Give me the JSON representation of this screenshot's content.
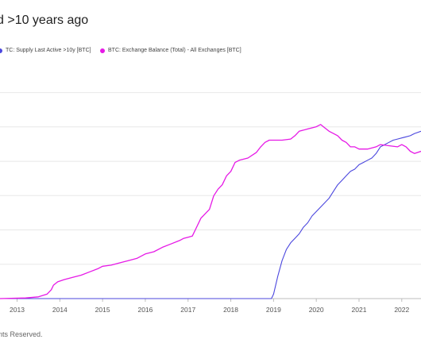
{
  "header": {
    "title": "d >10 years ago"
  },
  "footer": {
    "text": "nts Reserved."
  },
  "colors": {
    "series_supply": "#4b47de",
    "series_exchange": "#e619e6",
    "grid": "#e8e8e8",
    "axis": "#bdbdbd"
  },
  "chart_data": {
    "type": "line",
    "title": "d >10 years ago",
    "xlabel": "",
    "ylabel": "",
    "x_ticks": [
      "2013",
      "2014",
      "2015",
      "2016",
      "2017",
      "2018",
      "2019",
      "2020",
      "2021",
      "2022"
    ],
    "xlim": [
      2012.6,
      2022.45
    ],
    "ylim": [
      0,
      100
    ],
    "grid": true,
    "legend_position": "top",
    "series": [
      {
        "name": "TC: Supply Last Active >10y [BTC]",
        "color": "#4b47de",
        "points": [
          [
            2012.6,
            0
          ],
          [
            2018.95,
            0
          ],
          [
            2019.0,
            2
          ],
          [
            2019.1,
            10
          ],
          [
            2019.2,
            17
          ],
          [
            2019.3,
            22
          ],
          [
            2019.4,
            25
          ],
          [
            2019.5,
            27
          ],
          [
            2019.6,
            29
          ],
          [
            2019.7,
            32
          ],
          [
            2019.8,
            34
          ],
          [
            2019.9,
            37
          ],
          [
            2020.0,
            39
          ],
          [
            2020.1,
            41
          ],
          [
            2020.2,
            43
          ],
          [
            2020.3,
            45
          ],
          [
            2020.4,
            48
          ],
          [
            2020.5,
            51
          ],
          [
            2020.6,
            53
          ],
          [
            2020.7,
            55
          ],
          [
            2020.8,
            57
          ],
          [
            2020.9,
            58
          ],
          [
            2021.0,
            60
          ],
          [
            2021.1,
            61
          ],
          [
            2021.2,
            62
          ],
          [
            2021.3,
            63
          ],
          [
            2021.4,
            65
          ],
          [
            2021.5,
            68
          ],
          [
            2021.6,
            69
          ],
          [
            2021.7,
            70
          ],
          [
            2021.8,
            71
          ],
          [
            2021.9,
            71.5
          ],
          [
            2022.0,
            72
          ],
          [
            2022.1,
            72.5
          ],
          [
            2022.2,
            73
          ],
          [
            2022.3,
            74
          ],
          [
            2022.45,
            75
          ]
        ]
      },
      {
        "name": "BTC: Exchange Balance (Total) - All Exchanges [BTC]",
        "color": "#e619e6",
        "points": [
          [
            2012.6,
            0
          ],
          [
            2013.2,
            0.3
          ],
          [
            2013.5,
            0.8
          ],
          [
            2013.7,
            2
          ],
          [
            2013.8,
            4
          ],
          [
            2013.85,
            6
          ],
          [
            2013.95,
            7.5
          ],
          [
            2014.1,
            8.5
          ],
          [
            2014.3,
            9.5
          ],
          [
            2014.5,
            10.5
          ],
          [
            2014.7,
            12
          ],
          [
            2014.9,
            13.5
          ],
          [
            2015.0,
            14.5
          ],
          [
            2015.2,
            15
          ],
          [
            2015.4,
            16
          ],
          [
            2015.6,
            17
          ],
          [
            2015.8,
            18
          ],
          [
            2016.0,
            20
          ],
          [
            2016.2,
            21
          ],
          [
            2016.4,
            23
          ],
          [
            2016.6,
            24.5
          ],
          [
            2016.8,
            26
          ],
          [
            2016.9,
            27
          ],
          [
            2017.0,
            27.5
          ],
          [
            2017.1,
            28
          ],
          [
            2017.2,
            32
          ],
          [
            2017.3,
            36
          ],
          [
            2017.4,
            38
          ],
          [
            2017.5,
            40
          ],
          [
            2017.6,
            46
          ],
          [
            2017.7,
            49
          ],
          [
            2017.8,
            51
          ],
          [
            2017.9,
            55
          ],
          [
            2018.0,
            57
          ],
          [
            2018.1,
            61
          ],
          [
            2018.2,
            62
          ],
          [
            2018.4,
            63
          ],
          [
            2018.6,
            65.5
          ],
          [
            2018.7,
            68
          ],
          [
            2018.8,
            70
          ],
          [
            2018.9,
            71
          ],
          [
            2019.0,
            71
          ],
          [
            2019.2,
            71
          ],
          [
            2019.4,
            71.5
          ],
          [
            2019.5,
            73
          ],
          [
            2019.6,
            75
          ],
          [
            2019.8,
            76
          ],
          [
            2020.0,
            77
          ],
          [
            2020.1,
            78
          ],
          [
            2020.2,
            76.5
          ],
          [
            2020.3,
            75
          ],
          [
            2020.4,
            74
          ],
          [
            2020.5,
            73
          ],
          [
            2020.6,
            71
          ],
          [
            2020.7,
            70
          ],
          [
            2020.8,
            68
          ],
          [
            2020.9,
            68
          ],
          [
            2021.0,
            67
          ],
          [
            2021.2,
            67
          ],
          [
            2021.4,
            68
          ],
          [
            2021.5,
            69
          ],
          [
            2021.7,
            68.5
          ],
          [
            2021.9,
            68
          ],
          [
            2022.0,
            69
          ],
          [
            2022.1,
            68
          ],
          [
            2022.2,
            66
          ],
          [
            2022.3,
            65
          ],
          [
            2022.45,
            66
          ]
        ]
      }
    ]
  }
}
